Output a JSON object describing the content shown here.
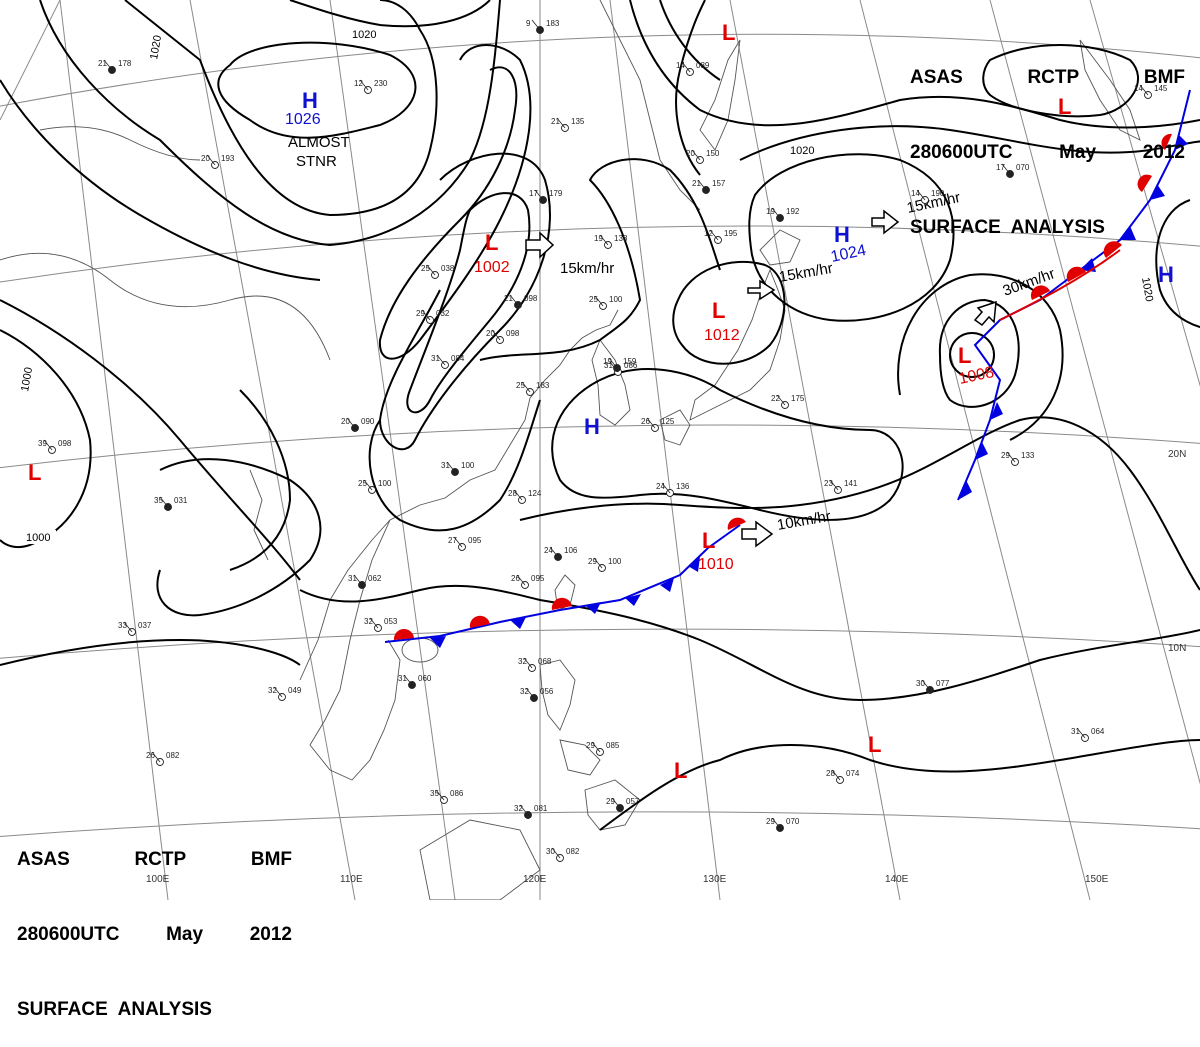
{
  "header": {
    "agency_top": [
      "ASAS",
      "RCTP",
      "BMF"
    ],
    "time_top": [
      "280600UTC",
      "May",
      "2012"
    ],
    "product_top": "SURFACE  ANALYSIS",
    "agency_bottom": [
      "ASAS",
      "RCTP",
      "BMF"
    ],
    "time_bottom": [
      "280600UTC",
      "May",
      "2012"
    ],
    "product_bottom": "SURFACE  ANALYSIS"
  },
  "colors": {
    "high": "#1010d0",
    "low": "#e00000",
    "cold_front": "#0000e0",
    "warm_front": "#e00000",
    "isobar": "#000000",
    "grid": "#8a8a8a",
    "coast": "#555555"
  },
  "pressure_centers": [
    {
      "type": "H",
      "value": "1026",
      "name": "h-1026",
      "note": "ALMOST STNR"
    },
    {
      "type": "L",
      "value": "1002",
      "name": "l-1002"
    },
    {
      "type": "L",
      "value": "1012",
      "name": "l-1012"
    },
    {
      "type": "H",
      "value": "1024",
      "name": "h-1024"
    },
    {
      "type": "L",
      "value": "1008",
      "name": "l-1008"
    },
    {
      "type": "L",
      "value": "1010",
      "name": "l-1010"
    },
    {
      "type": "H",
      "value": "",
      "name": "h-east-china-sea"
    },
    {
      "type": "H",
      "value": "",
      "name": "h-east-edge"
    },
    {
      "type": "L",
      "value": "",
      "name": "l-west"
    },
    {
      "type": "L",
      "value": "",
      "name": "l-north"
    },
    {
      "type": "L",
      "value": "",
      "name": "l-northeast"
    },
    {
      "type": "L",
      "value": "",
      "name": "l-south-1"
    },
    {
      "type": "L",
      "value": "",
      "name": "l-south-2"
    }
  ],
  "notes": {
    "almost": "ALMOST",
    "stnr": "STNR"
  },
  "movements": [
    {
      "label": "15km/hr",
      "name": "move-l1002"
    },
    {
      "label": "15km/hr",
      "name": "move-l1012"
    },
    {
      "label": "15km/hr",
      "name": "move-h1024"
    },
    {
      "label": "30km/hr",
      "name": "move-l1008"
    },
    {
      "label": "10km/hr",
      "name": "move-l1010"
    }
  ],
  "isobar_labels": [
    "1020",
    "1020",
    "1020",
    "1020",
    "1000",
    "1000"
  ],
  "grid_labels": {
    "longitudes": [
      "100E",
      "110E",
      "120E",
      "130E",
      "140E",
      "150E"
    ],
    "latitudes": [
      "20N",
      "10N"
    ]
  },
  "stations": [
    {
      "t": "21",
      "p": "178"
    },
    {
      "t": "12",
      "p": "230"
    },
    {
      "t": "20",
      "p": "193"
    },
    {
      "t": "9",
      "p": "183"
    },
    {
      "t": "21",
      "p": "135"
    },
    {
      "t": "20",
      "p": "150"
    },
    {
      "t": "21",
      "p": "157"
    },
    {
      "t": "14",
      "p": "089"
    },
    {
      "t": "19",
      "p": "138"
    },
    {
      "t": "17",
      "p": "179"
    },
    {
      "t": "25",
      "p": "038"
    },
    {
      "t": "29",
      "p": "032"
    },
    {
      "t": "20",
      "p": "090"
    },
    {
      "t": "20",
      "p": "098"
    },
    {
      "t": "31",
      "p": "084"
    },
    {
      "t": "21",
      "p": "098"
    },
    {
      "t": "25",
      "p": "183"
    },
    {
      "t": "31",
      "p": "086"
    },
    {
      "t": "35",
      "p": "031"
    },
    {
      "t": "39",
      "p": "098"
    },
    {
      "t": "25",
      "p": "100"
    },
    {
      "t": "31",
      "p": "100"
    },
    {
      "t": "28",
      "p": "124"
    },
    {
      "t": "27",
      "p": "095"
    },
    {
      "t": "24",
      "p": "106"
    },
    {
      "t": "26",
      "p": "095"
    },
    {
      "t": "29",
      "p": "100"
    },
    {
      "t": "31",
      "p": "062"
    },
    {
      "t": "33",
      "p": "037"
    },
    {
      "t": "32",
      "p": "053"
    },
    {
      "t": "31",
      "p": "060"
    },
    {
      "t": "32",
      "p": "049"
    },
    {
      "t": "32",
      "p": "068"
    },
    {
      "t": "32",
      "p": "056"
    },
    {
      "t": "26",
      "p": "082"
    },
    {
      "t": "35",
      "p": "086"
    },
    {
      "t": "32",
      "p": "081"
    },
    {
      "t": "30",
      "p": "082"
    },
    {
      "t": "29",
      "p": "085"
    },
    {
      "t": "29",
      "p": "057"
    },
    {
      "t": "23",
      "p": "141"
    },
    {
      "t": "29",
      "p": "133"
    },
    {
      "t": "30",
      "p": "077"
    },
    {
      "t": "31",
      "p": "064"
    },
    {
      "t": "28",
      "p": "074"
    },
    {
      "t": "29",
      "p": "070"
    },
    {
      "t": "24",
      "p": "136"
    },
    {
      "t": "22",
      "p": "175"
    },
    {
      "t": "19",
      "p": "159"
    },
    {
      "t": "26",
      "p": "125"
    },
    {
      "t": "14",
      "p": "190"
    },
    {
      "t": "19",
      "p": "192"
    },
    {
      "t": "12",
      "p": "195"
    },
    {
      "t": "14",
      "p": "145"
    },
    {
      "t": "17",
      "p": "070"
    },
    {
      "t": "25",
      "p": "100"
    }
  ]
}
